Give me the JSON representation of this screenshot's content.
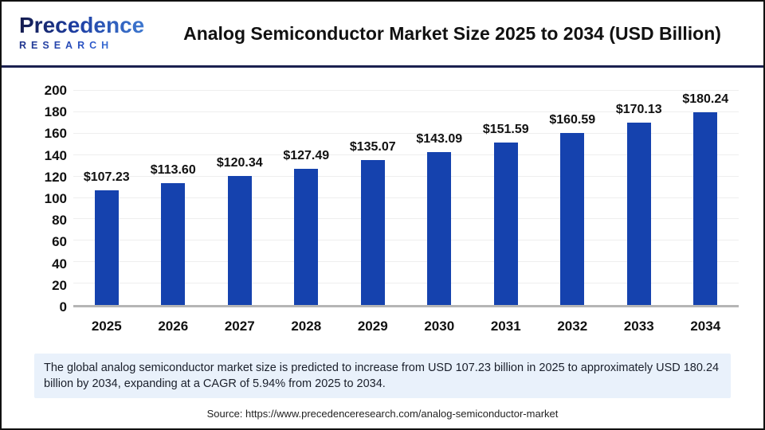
{
  "header": {
    "logo_line1": "Precedence",
    "logo_line2": "RESEARCH",
    "title": "Analog Semiconductor Market Size 2025 to 2034 (USD Billion)"
  },
  "chart_data": {
    "type": "bar",
    "title": "Analog Semiconductor Market Size 2025 to 2034 (USD Billion)",
    "categories": [
      "2025",
      "2026",
      "2027",
      "2028",
      "2029",
      "2030",
      "2031",
      "2032",
      "2033",
      "2034"
    ],
    "values": [
      107.23,
      113.6,
      120.34,
      127.49,
      135.07,
      143.09,
      151.59,
      160.59,
      170.13,
      180.24
    ],
    "value_labels": [
      "$107.23",
      "$113.60",
      "$120.34",
      "$127.49",
      "$135.07",
      "$143.09",
      "$151.59",
      "$160.59",
      "$170.13",
      "$180.24"
    ],
    "xlabel": "",
    "ylabel": "",
    "ylim": [
      0,
      200
    ],
    "ytick_step": 20,
    "grid": true,
    "legend": false,
    "bar_color": "#1542ae",
    "gridline_color": "#eeeeee",
    "axis_color": "#b5b5b5"
  },
  "note": {
    "text": "The global analog semiconductor market size is predicted to increase from USD 107.23 billion in 2025 to approximately USD 180.24 billion by 2034, expanding at a CAGR of 5.94% from 2025 to 2034."
  },
  "source": {
    "text": "Source: https://www.precedenceresearch.com/analog-semiconductor-market"
  }
}
